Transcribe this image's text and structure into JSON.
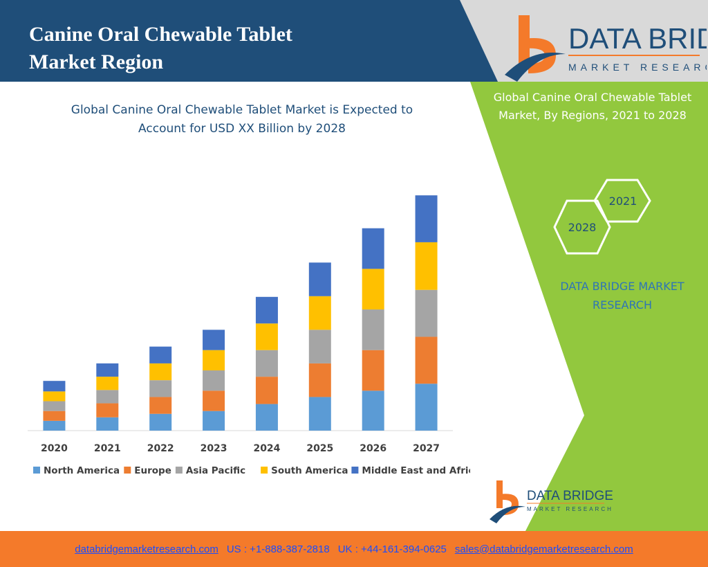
{
  "header": {
    "title_line1": "Canine Oral Chewable Tablet",
    "title_line2": "Market Region"
  },
  "brand": {
    "name": "DATA BRIDGE",
    "tagline": "MARKET RESEARCH"
  },
  "side_panel": {
    "title_line1": "Global Canine Oral Chewable Tablet",
    "title_line2": "Market, By Regions, 2021 to 2028",
    "hex_year_a": "2021",
    "hex_year_b": "2028",
    "brand_line1": "DATA BRIDGE MARKET",
    "brand_line2": "RESEARCH"
  },
  "footer": {
    "website": "databridgemarketresearch.com",
    "us_phone": "US : +1-888-387-2818",
    "uk_phone": "UK : +44-161-394-0625",
    "email": "sales@databridgemarketresearch.com"
  },
  "colors": {
    "header_bg": "#1f4e79",
    "side_bg": "#92c83e",
    "footer_bg": "#f47a2a",
    "logo_orange": "#f47a2a",
    "logo_blue": "#1f4e79"
  },
  "chart_data": {
    "type": "bar",
    "stacked": true,
    "title_line1": "Global Canine Oral Chewable Tablet Market is Expected to",
    "title_line2": "Account for USD XX Billion by 2028",
    "categories": [
      "2020",
      "2021",
      "2022",
      "2023",
      "2024",
      "2025",
      "2026",
      "2027"
    ],
    "series": [
      {
        "name": "North America",
        "color": "#5b9bd5",
        "values": [
          14,
          19,
          24,
          28,
          38,
          48,
          57,
          67
        ]
      },
      {
        "name": "Europe",
        "color": "#ed7d31",
        "values": [
          14,
          20,
          24,
          29,
          39,
          48,
          58,
          67
        ]
      },
      {
        "name": "Asia Pacific",
        "color": "#a5a5a5",
        "values": [
          14,
          19,
          24,
          29,
          38,
          48,
          58,
          67
        ]
      },
      {
        "name": "South America",
        "color": "#ffc000",
        "values": [
          14,
          19,
          24,
          29,
          38,
          48,
          58,
          68
        ]
      },
      {
        "name": "Middle East and Africa",
        "color": "#4472c4",
        "values": [
          15,
          19,
          24,
          29,
          38,
          48,
          58,
          67
        ]
      }
    ],
    "ylim": [
      0,
      350
    ],
    "grid": false,
    "legend": "bottom"
  }
}
